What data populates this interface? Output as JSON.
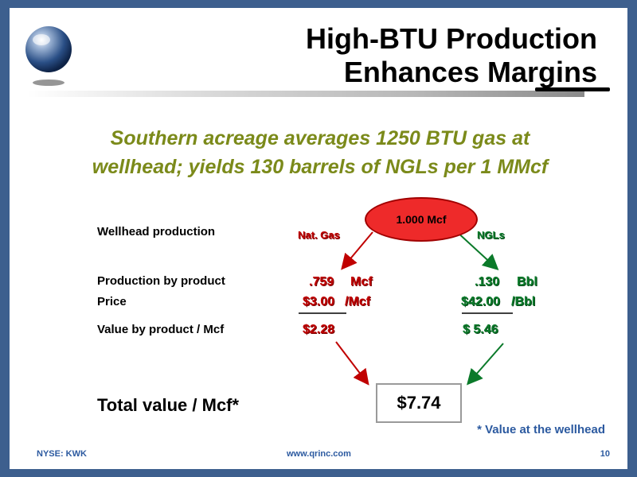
{
  "title": {
    "line1": "High-BTU Production",
    "line2": "Enhances Margins"
  },
  "subtitle": {
    "line1": "Southern acreage averages 1250 BTU gas at",
    "line2": "wellhead; yields 130 barrels of NGLs per 1 MMcf"
  },
  "labels": {
    "wellhead": "Wellhead production",
    "production_by_product": "Production by product",
    "price": "Price",
    "value_by_product": "Value by product / Mcf",
    "total_value": "Total value / Mcf*"
  },
  "source": {
    "value": "1.000 Mcf"
  },
  "nat_gas": {
    "name": "Nat. Gas",
    "production": ".759",
    "production_unit": "Mcf",
    "price": "$3.00",
    "price_unit": "/Mcf",
    "value": "$2.28",
    "color": "#c00000"
  },
  "ngls": {
    "name": "NGLs",
    "production": ".130",
    "production_unit": "Bbl",
    "price": "$42.00",
    "price_unit": "/Bbl",
    "value": "$ 5.46",
    "color": "#0b7a2a"
  },
  "total": {
    "value": "$7.74"
  },
  "footnote": "* Value at the wellhead",
  "footer": {
    "ticker": "NYSE: KWK",
    "website": "www.qrinc.com",
    "page": "10"
  },
  "colors": {
    "border": "#3d5f8e",
    "subtitle": "#7b8a1a",
    "footer": "#2c5aa0"
  }
}
